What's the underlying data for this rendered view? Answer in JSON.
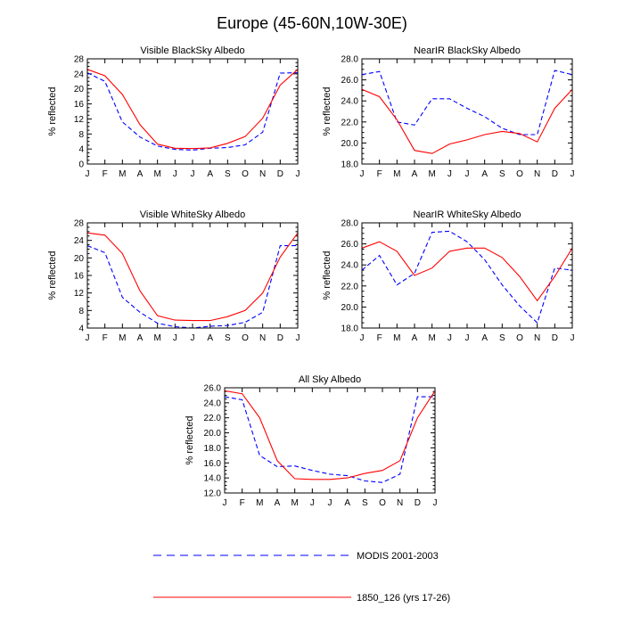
{
  "title": "Europe (45-60N,10W-30E)",
  "legend": [
    {
      "label": "MODIS 2001-2003",
      "color": "#0000ff",
      "dash": true
    },
    {
      "label": "1850_126 (yrs 17-26)",
      "color": "#ff0000",
      "dash": false
    }
  ],
  "chart_data": [
    {
      "type": "line",
      "title": "Visible BlackSky Albedo",
      "ylabel": "% reflected",
      "categories": [
        "J",
        "F",
        "M",
        "A",
        "M",
        "J",
        "J",
        "A",
        "S",
        "O",
        "N",
        "D",
        "J"
      ],
      "ylim": [
        0,
        28
      ],
      "yticks": [
        "0",
        "4",
        "8",
        "12",
        "16",
        "20",
        "24",
        "28"
      ],
      "series": [
        {
          "name": "MODIS 2001-2003",
          "color": "#0000ff",
          "dash": true,
          "values": [
            24.3,
            22.0,
            11.2,
            7.2,
            4.8,
            3.9,
            3.7,
            4.2,
            4.4,
            5.1,
            8.5,
            24.2,
            24.3
          ]
        },
        {
          "name": "1850_126 (yrs 17-26)",
          "color": "#ff0000",
          "dash": false,
          "values": [
            25.2,
            23.5,
            18.5,
            10.5,
            5.3,
            4.2,
            4.1,
            4.3,
            5.5,
            7.3,
            12.2,
            21.0,
            25.2
          ]
        }
      ]
    },
    {
      "type": "line",
      "title": "NearIR BlackSky Albedo",
      "ylabel": "% reflected",
      "categories": [
        "J",
        "F",
        "M",
        "A",
        "M",
        "J",
        "J",
        "A",
        "S",
        "O",
        "N",
        "D",
        "J"
      ],
      "ylim": [
        18,
        28
      ],
      "yticks": [
        "18.0",
        "20.0",
        "22.0",
        "24.0",
        "26.0",
        "28.0"
      ],
      "series": [
        {
          "name": "MODIS 2001-2003",
          "color": "#0000ff",
          "dash": true,
          "values": [
            26.5,
            26.8,
            22.0,
            21.7,
            24.2,
            24.2,
            23.3,
            22.5,
            21.4,
            20.8,
            20.8,
            26.9,
            26.5
          ]
        },
        {
          "name": "1850_126 (yrs 17-26)",
          "color": "#ff0000",
          "dash": false,
          "values": [
            25.1,
            24.4,
            22.2,
            19.3,
            19.0,
            19.9,
            20.3,
            20.8,
            21.1,
            20.9,
            20.1,
            23.3,
            25.1
          ]
        }
      ]
    },
    {
      "type": "line",
      "title": "Visible WhiteSky Albedo",
      "ylabel": "% reflected",
      "categories": [
        "J",
        "F",
        "M",
        "A",
        "M",
        "J",
        "J",
        "A",
        "S",
        "O",
        "N",
        "D",
        "J"
      ],
      "ylim": [
        4,
        28
      ],
      "yticks": [
        "4",
        "8",
        "12",
        "16",
        "20",
        "24",
        "28"
      ],
      "series": [
        {
          "name": "MODIS 2001-2003",
          "color": "#0000ff",
          "dash": true,
          "values": [
            22.8,
            21.2,
            11.0,
            7.6,
            5.1,
            4.3,
            4.0,
            4.4,
            4.6,
            5.3,
            7.6,
            22.8,
            22.8
          ]
        },
        {
          "name": "1850_126 (yrs 17-26)",
          "color": "#ff0000",
          "dash": false,
          "values": [
            25.7,
            25.2,
            21.0,
            12.5,
            6.8,
            5.8,
            5.7,
            5.7,
            6.6,
            8.0,
            12.0,
            20.2,
            25.7
          ]
        }
      ]
    },
    {
      "type": "line",
      "title": "NearIR WhiteSky Albedo",
      "ylabel": "% reflected",
      "categories": [
        "J",
        "F",
        "M",
        "A",
        "M",
        "J",
        "J",
        "A",
        "S",
        "O",
        "N",
        "D",
        "J"
      ],
      "ylim": [
        18,
        28
      ],
      "yticks": [
        "18.0",
        "20.0",
        "22.0",
        "24.0",
        "26.0",
        "28.0"
      ],
      "series": [
        {
          "name": "MODIS 2001-2003",
          "color": "#0000ff",
          "dash": true,
          "values": [
            23.5,
            24.9,
            22.1,
            23.2,
            27.1,
            27.2,
            26.2,
            24.5,
            22.1,
            20.1,
            18.5,
            23.7,
            23.5
          ]
        },
        {
          "name": "1850_126 (yrs 17-26)",
          "color": "#ff0000",
          "dash": false,
          "values": [
            25.6,
            26.2,
            25.3,
            23.0,
            23.7,
            25.3,
            25.6,
            25.6,
            24.7,
            22.9,
            20.6,
            22.9,
            25.6
          ]
        }
      ]
    },
    {
      "type": "line",
      "title": "All Sky Albedo",
      "ylabel": "% reflected",
      "categories": [
        "J",
        "F",
        "M",
        "A",
        "M",
        "J",
        "J",
        "A",
        "S",
        "O",
        "N",
        "D",
        "J"
      ],
      "ylim": [
        12,
        26
      ],
      "yticks": [
        "12.0",
        "14.0",
        "16.0",
        "18.0",
        "20.0",
        "22.0",
        "24.0",
        "26.0"
      ],
      "series": [
        {
          "name": "MODIS 2001-2003",
          "color": "#0000ff",
          "dash": true,
          "values": [
            24.8,
            24.4,
            17.0,
            15.5,
            15.6,
            15.0,
            14.5,
            14.3,
            13.6,
            13.4,
            14.5,
            24.8,
            24.8
          ]
        },
        {
          "name": "1850_126 (yrs 17-26)",
          "color": "#ff0000",
          "dash": false,
          "values": [
            25.6,
            25.2,
            22.0,
            16.3,
            13.9,
            13.8,
            13.8,
            14.0,
            14.6,
            15.0,
            16.3,
            22.0,
            25.6
          ]
        }
      ]
    }
  ]
}
